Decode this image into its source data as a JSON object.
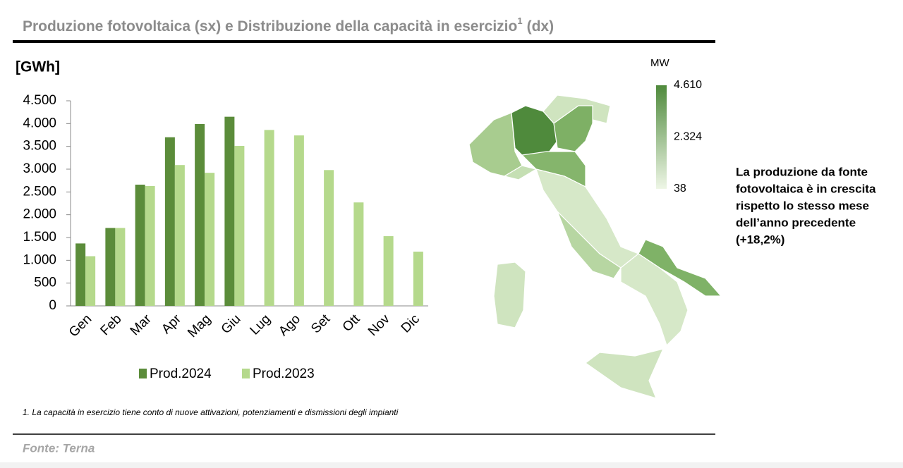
{
  "title": "Produzione fotovoltaica (sx) e Distribuzione della capacità in esercizio",
  "title_sup": "1",
  "title_end": "(dx)",
  "chart_data": {
    "type": "bar",
    "y_label": "[GWh]",
    "categories": [
      "Gen",
      "Feb",
      "Mar",
      "Apr",
      "Mag",
      "Giu",
      "Lug",
      "Ago",
      "Set",
      "Ott",
      "Nov",
      "Dic"
    ],
    "series": [
      {
        "name": "Prod.2024",
        "color": "#5b8c3a",
        "values": [
          1370,
          1710,
          2660,
          3700,
          3990,
          4150,
          null,
          null,
          null,
          null,
          null,
          null
        ]
      },
      {
        "name": "Prod.2023",
        "color": "#b5d98c",
        "values": [
          1090,
          1710,
          2630,
          3090,
          2920,
          3510,
          3860,
          3740,
          2980,
          2270,
          1530,
          1190
        ]
      }
    ],
    "ylim": [
      0,
      4500
    ],
    "yticks": [
      0,
      500,
      {
        "value": 1000,
        "label": "1.000"
      },
      {
        "value": 1500,
        "label": "1.500"
      },
      {
        "value": 2000,
        "label": "2.000"
      },
      {
        "value": 2500,
        "label": "2.500"
      },
      {
        "value": 3000,
        "label": "3.000"
      },
      {
        "value": 3500,
        "label": "3.500"
      },
      {
        "value": 4000,
        "label": "4.000"
      },
      {
        "value": 4500,
        "label": "4.500"
      }
    ]
  },
  "map": {
    "unit": "MW",
    "ticks": [
      {
        "value": 4610,
        "label": "4.610"
      },
      {
        "value": 2324,
        "label": "2.324"
      },
      38
    ],
    "colors": [
      "#4f8a3c",
      "#eef6e6"
    ]
  },
  "side_note": [
    "La produzione da fonte",
    "fotovoltaica è in crescita",
    "rispetto lo stesso mese",
    "dell’anno precedente",
    "(+18,2%)"
  ],
  "footnote": "1. La capacità in esercizio tiene conto di nuove attivazioni, potenziamenti e dismissioni degli impianti",
  "source": "Fonte: Terna"
}
